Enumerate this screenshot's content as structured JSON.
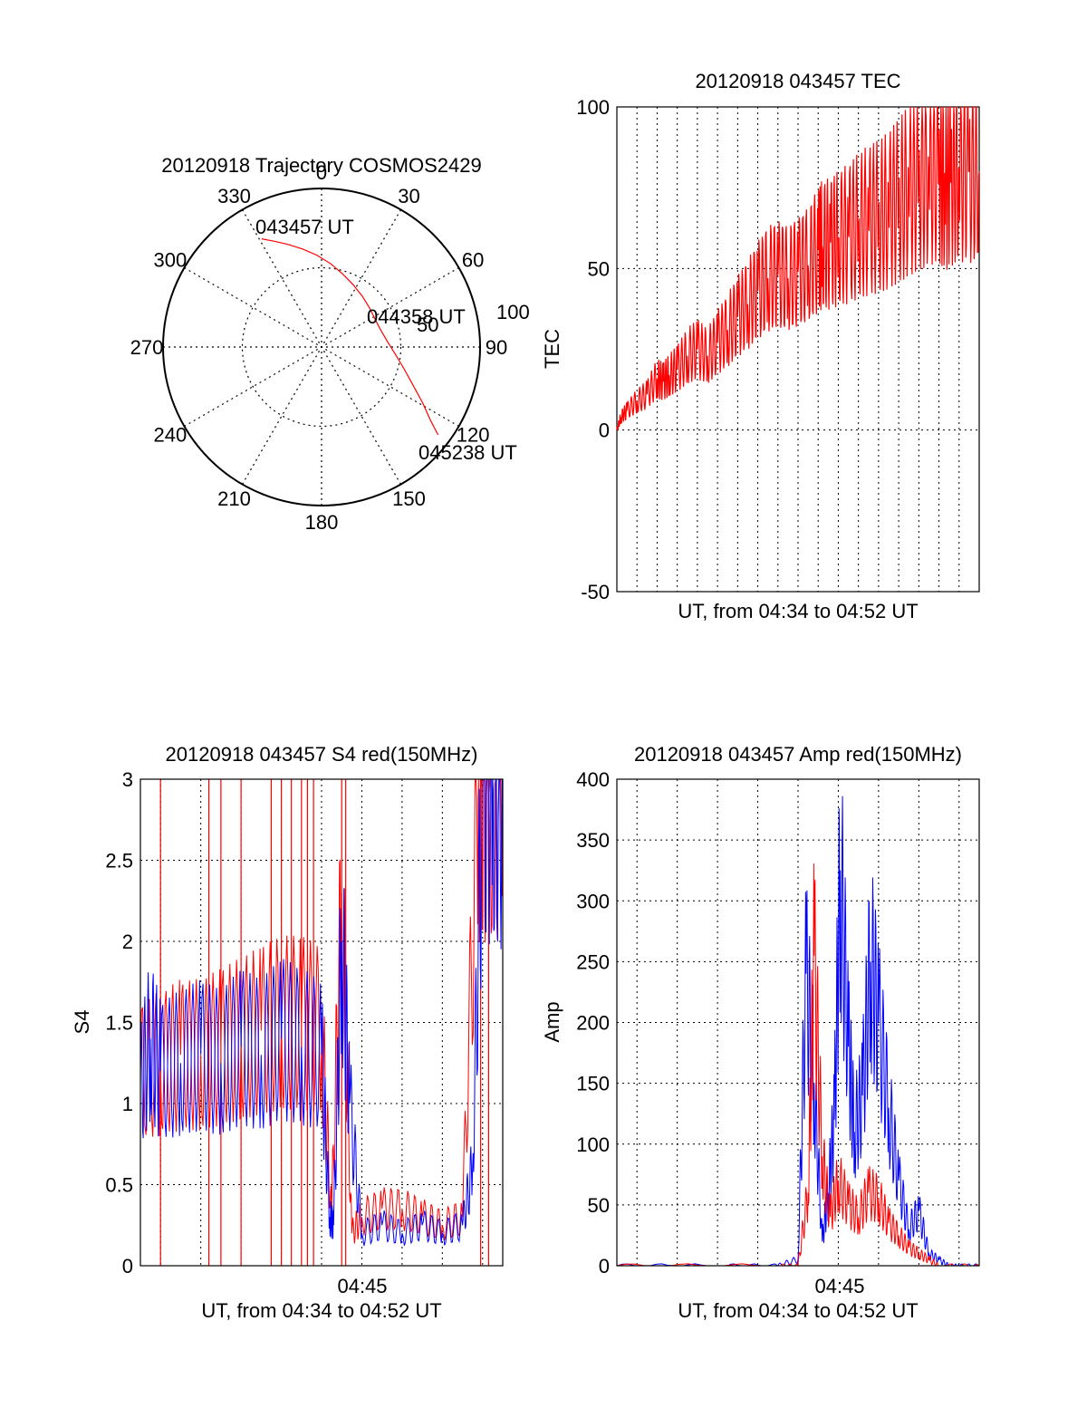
{
  "chart_data": [
    {
      "type": "polar",
      "title": "20120918 Trajectory COSMOS2429",
      "angle_labels": [
        "0",
        "30",
        "60",
        "90",
        "120",
        "150",
        "180",
        "210",
        "240",
        "270",
        "300",
        "330"
      ],
      "radial_labels": [
        "50",
        "100"
      ],
      "trajectory": {
        "color": "#ff0000",
        "azimuth_deg": [
          331,
          336,
          342,
          349,
          357,
          6,
          16,
          27,
          39,
          51,
          63,
          75,
          86,
          96,
          105,
          113,
          119,
          124,
          127
        ],
        "zenith_deg": [
          78,
          73,
          68,
          63,
          58,
          53,
          48,
          44,
          41,
          39,
          38,
          39,
          42,
          47,
          54,
          63,
          73,
          83,
          92
        ],
        "annotations": [
          {
            "text": "043457 UT"
          },
          {
            "text": "044358 UT"
          },
          {
            "text": "045238 UT"
          }
        ]
      }
    },
    {
      "type": "line",
      "title": "20120918 043457 TEC",
      "xlabel": "UT, from 04:34 to 04:52 UT",
      "ylabel": "TEC",
      "yticks": [
        "100",
        "50",
        "0",
        "-50"
      ],
      "ylim": [
        -50,
        100
      ],
      "grid": true,
      "series": [
        {
          "color": "#ff0000",
          "x_minutes": [
            0.0,
            0.2,
            0.5,
            1.0,
            1.5,
            2.0,
            2.3,
            2.6,
            3.0,
            3.5,
            4.0,
            4.5,
            5.0,
            5.5,
            6.0,
            6.5,
            7.0,
            7.5,
            8.0,
            8.5,
            9.0,
            9.5,
            10.0,
            10.2,
            10.6,
            11.0,
            11.5,
            12.0,
            12.5,
            13.0,
            13.5,
            14.0,
            14.5,
            15.0,
            15.5,
            16.0,
            16.3,
            16.6,
            17.0,
            17.5,
            18.0
          ],
          "values": [
            0,
            4,
            6,
            9,
            11,
            16,
            15,
            17,
            19,
            23,
            25,
            23,
            27,
            31,
            35,
            39,
            43,
            47,
            48,
            47,
            49,
            51,
            56,
            57,
            58,
            59,
            61,
            63,
            65,
            66,
            68,
            71,
            74,
            77,
            79,
            81,
            76,
            79,
            80,
            80,
            80
          ]
        }
      ]
    },
    {
      "type": "line",
      "title": "20120918 043457 S4 red(150MHz)",
      "xlabel": "UT, from 04:34 to 04:52 UT",
      "ylabel": "S4",
      "xticks": [
        "04:45"
      ],
      "yticks": [
        "0",
        "0.5",
        "1",
        "1.5",
        "2",
        "2.5",
        "3"
      ],
      "ylim": [
        0,
        3
      ],
      "grid": true,
      "series": [
        {
          "color": "#ff0000",
          "x_minutes": [
            0.0,
            1.0,
            2.0,
            3.0,
            4.0,
            5.0,
            6.0,
            7.0,
            8.0,
            9.0,
            9.5,
            10.0,
            10.5,
            11.0,
            12.0,
            13.0,
            14.0,
            15.0,
            16.0,
            16.8,
            17.2,
            18.0
          ],
          "values": [
            1.2,
            1.25,
            1.3,
            1.3,
            1.35,
            1.4,
            1.45,
            1.5,
            1.5,
            1.45,
            0.3,
            2.3,
            0.2,
            0.3,
            0.35,
            0.35,
            0.3,
            0.25,
            0.3,
            3.0,
            3.0,
            3.0
          ],
          "spikes_to_top_minutes": [
            1.0,
            3.4,
            4.0,
            5.0,
            6.5,
            7.0,
            7.5,
            8.0,
            8.3,
            8.6,
            10.0,
            10.2,
            16.9,
            17.3
          ]
        },
        {
          "color": "#0000ff",
          "x_minutes": [
            0.0,
            0.5,
            1.0,
            2.0,
            3.0,
            4.0,
            5.0,
            6.0,
            7.0,
            8.0,
            9.0,
            9.4,
            9.6,
            10.0,
            10.4,
            11.0,
            12.0,
            13.0,
            14.0,
            15.0,
            16.0,
            16.5,
            17.0,
            17.5,
            18.0
          ],
          "values": [
            1.1,
            1.4,
            1.2,
            1.25,
            1.3,
            1.25,
            1.35,
            1.3,
            1.4,
            1.35,
            1.3,
            0.3,
            0.25,
            2.0,
            1.0,
            0.2,
            0.25,
            0.2,
            0.25,
            0.2,
            0.25,
            0.6,
            3.0,
            3.0,
            3.0
          ]
        }
      ]
    },
    {
      "type": "line",
      "title": "20120918 043457 Amp red(150MHz)",
      "xlabel": "UT, from 04:34 to 04:52 UT",
      "ylabel": "Amp",
      "xticks": [
        "04:45"
      ],
      "yticks": [
        "0",
        "50",
        "100",
        "150",
        "200",
        "250",
        "300",
        "350",
        "400"
      ],
      "ylim": [
        0,
        400
      ],
      "grid": true,
      "series": [
        {
          "color": "#0000ff",
          "x_minutes": [
            0.0,
            5.0,
            8.0,
            9.0,
            9.4,
            9.8,
            10.2,
            10.5,
            10.8,
            11.1,
            11.5,
            11.8,
            12.2,
            12.6,
            13.0,
            13.5,
            14.0,
            14.5,
            15.0,
            15.5,
            16.0,
            16.5,
            17.0,
            18.0
          ],
          "values": [
            0,
            0,
            0,
            5,
            240,
            150,
            20,
            60,
            120,
            325,
            180,
            110,
            140,
            250,
            200,
            130,
            70,
            30,
            45,
            10,
            5,
            0,
            0,
            0
          ]
        },
        {
          "color": "#ff0000",
          "x_minutes": [
            0.0,
            8.0,
            9.0,
            9.5,
            9.8,
            10.2,
            10.6,
            11.0,
            11.5,
            12.0,
            12.5,
            13.0,
            13.5,
            14.0,
            14.5,
            15.0,
            15.5,
            16.0,
            18.0
          ],
          "values": [
            0,
            0,
            0,
            60,
            255,
            90,
            40,
            70,
            50,
            40,
            60,
            55,
            35,
            25,
            15,
            10,
            5,
            0,
            0
          ]
        }
      ]
    }
  ]
}
